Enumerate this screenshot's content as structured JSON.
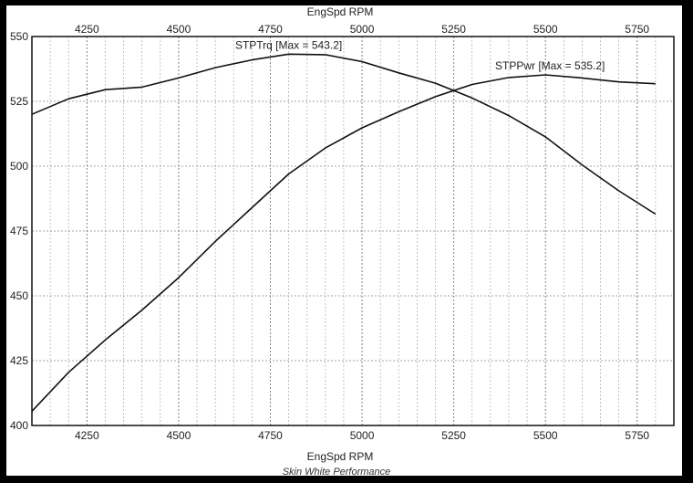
{
  "chart_data": {
    "type": "line",
    "xlabel_top": "EngSpd RPM",
    "xlabel": "EngSpd RPM",
    "footer": "Skin White Performance",
    "xlim": [
      4100,
      5850
    ],
    "ylim": [
      400,
      550
    ],
    "x_ticks": [
      4250,
      4500,
      4750,
      5000,
      5250,
      5500,
      5750
    ],
    "y_ticks": [
      400,
      425,
      450,
      475,
      500,
      525,
      550
    ],
    "y_tick_labels": [
      "400",
      "425",
      "450",
      "475",
      "500",
      "525",
      "550"
    ],
    "grid": true,
    "series": [
      {
        "name": "STPTrq [Max = 543.2]",
        "x": [
          4100,
          4200,
          4300,
          4400,
          4500,
          4600,
          4700,
          4800,
          4900,
          5000,
          5100,
          5200,
          5300,
          5400,
          5500,
          5600,
          5700,
          5800
        ],
        "values": [
          520.0,
          526.0,
          529.5,
          530.5,
          534.0,
          538.0,
          541.0,
          543.2,
          543.0,
          540.3,
          536.0,
          532.0,
          526.3,
          519.5,
          511.3,
          500.5,
          490.5,
          481.5
        ]
      },
      {
        "name": "STPPwr [Max = 535.2]",
        "x": [
          4100,
          4200,
          4300,
          4400,
          4500,
          4600,
          4700,
          4800,
          4900,
          5000,
          5100,
          5200,
          5300,
          5400,
          5500,
          5600,
          5700,
          5800
        ],
        "values": [
          405.5,
          420.5,
          433.0,
          444.5,
          457.0,
          471.0,
          484.0,
          497.0,
          507.0,
          514.8,
          521.0,
          526.8,
          531.5,
          534.2,
          535.2,
          534.0,
          532.5,
          531.8
        ]
      }
    ]
  }
}
